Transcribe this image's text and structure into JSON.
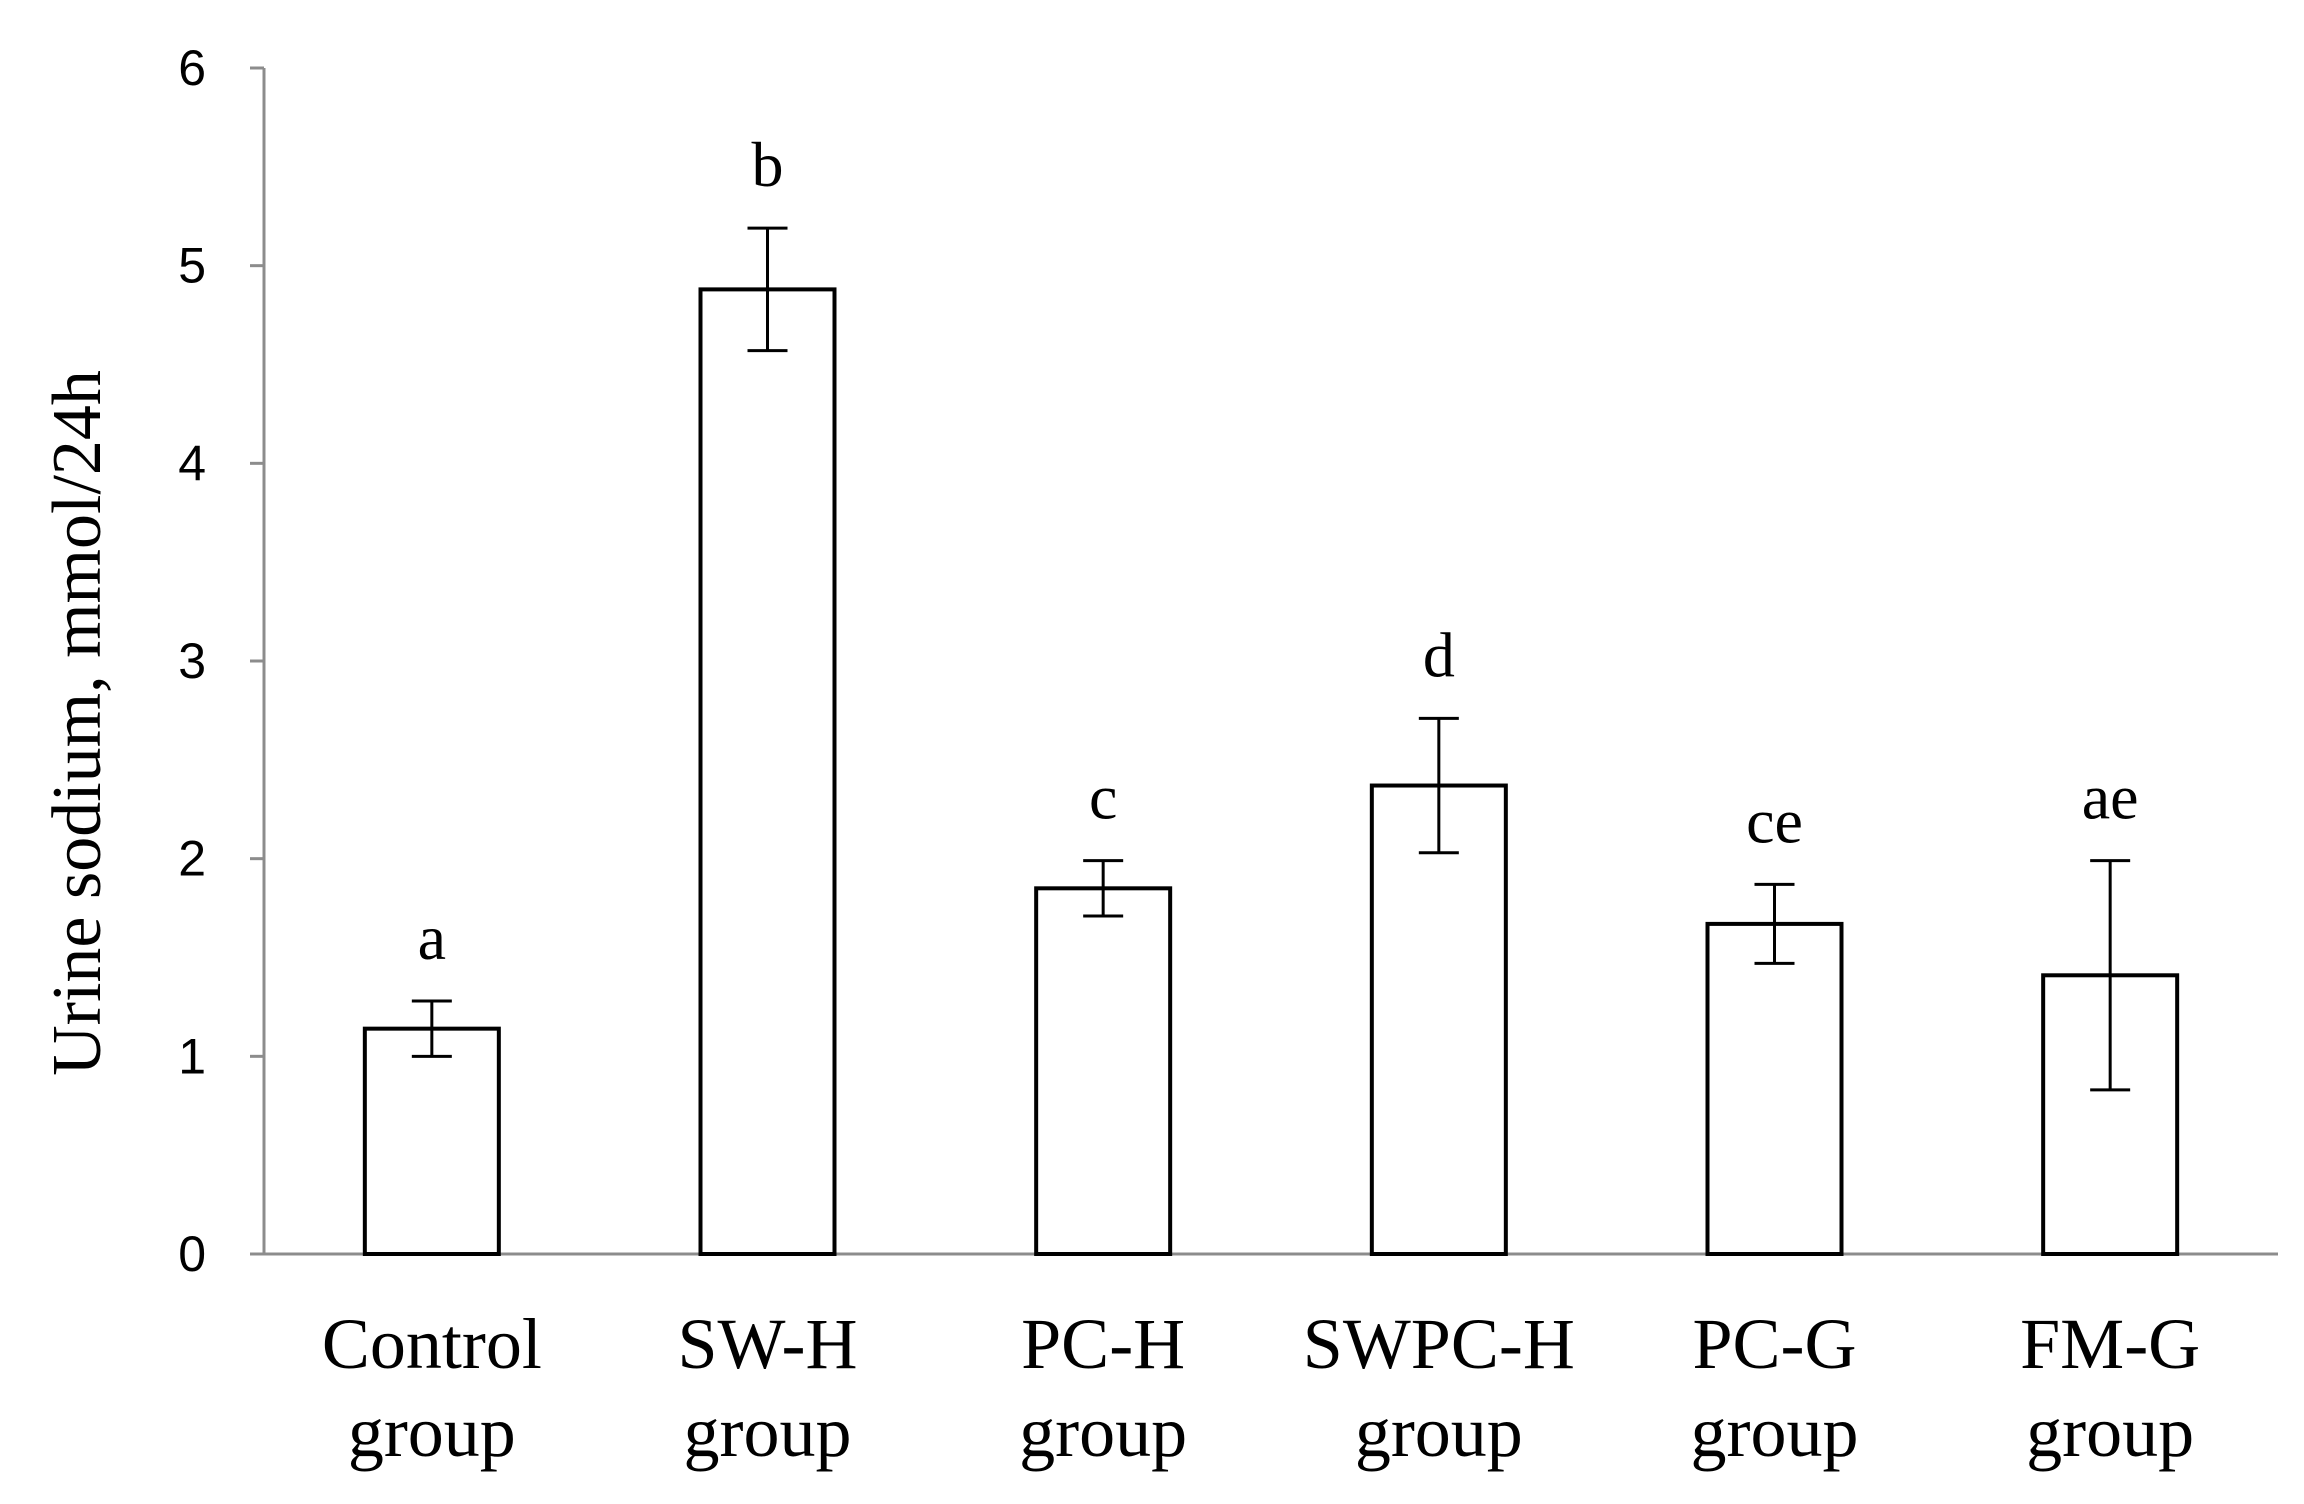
{
  "chart_data": {
    "type": "bar",
    "title": "",
    "xlabel": "",
    "ylabel": "Urine sodium, mmol/24h",
    "ylim": [
      0,
      6
    ],
    "yticks": [
      0,
      1,
      2,
      3,
      4,
      5,
      6
    ],
    "grid": false,
    "legend": "none",
    "categories": [
      {
        "line1": "Control",
        "line2": "group"
      },
      {
        "line1": "SW-H",
        "line2": "group"
      },
      {
        "line1": "PC-H",
        "line2": "group"
      },
      {
        "line1": "SWPC-H",
        "line2": "group"
      },
      {
        "line1": "PC-G",
        "line2": "group"
      },
      {
        "line1": "FM-G",
        "line2": "group"
      }
    ],
    "values": [
      1.14,
      4.88,
      1.85,
      2.37,
      1.67,
      1.41
    ],
    "errors": [
      0.14,
      0.31,
      0.14,
      0.34,
      0.2,
      0.58
    ],
    "significance_labels": [
      "a",
      "b",
      "c",
      "d",
      "ce",
      "ae"
    ],
    "colors": {
      "bar_fill": "#ffffff",
      "bar_stroke": "#000000",
      "axis": "#8c8c8c",
      "text": "#000000"
    }
  }
}
